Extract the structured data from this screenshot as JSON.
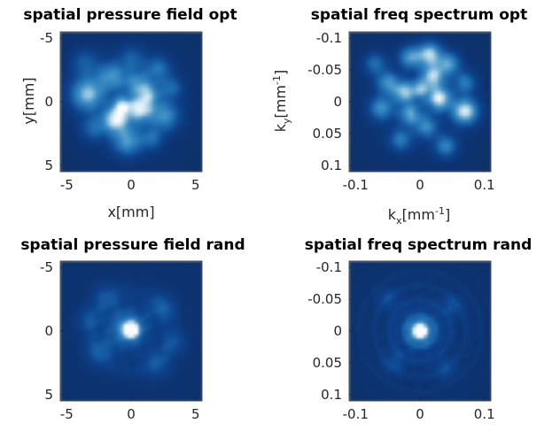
{
  "chart_data": [
    {
      "type": "heatmap",
      "title": "spatial pressure field opt",
      "xlabel": "x[mm]",
      "ylabel": "y[mm]",
      "xlim": [
        -5.5,
        5.5
      ],
      "ylim": [
        -5.5,
        5.5
      ],
      "y_reversed": true,
      "xticks": [
        -5,
        0,
        5
      ],
      "xtick_labels": [
        "-5",
        "0",
        "5"
      ],
      "yticks": [
        -5,
        0,
        5
      ],
      "ytick_labels": [
        "-5",
        "0",
        "5"
      ],
      "colormap": "blues-dark",
      "blobs": [
        {
          "x": -3.4,
          "y": -0.6,
          "r": 0.9,
          "v": 0.75
        },
        {
          "x": -1.5,
          "y": -2.0,
          "r": 0.8,
          "v": 0.55
        },
        {
          "x": 0.5,
          "y": -1.4,
          "r": 0.7,
          "v": 0.5
        },
        {
          "x": 1.4,
          "y": -0.6,
          "r": 0.6,
          "v": 0.5
        },
        {
          "x": 0.7,
          "y": 0.6,
          "r": 0.7,
          "v": 0.8
        },
        {
          "x": -1.2,
          "y": 1.4,
          "r": 0.7,
          "v": 0.85
        },
        {
          "x": -0.7,
          "y": 0.3,
          "r": 0.5,
          "v": 0.6
        },
        {
          "x": 2.6,
          "y": 1.1,
          "r": 0.8,
          "v": 0.55
        },
        {
          "x": -0.3,
          "y": 3.1,
          "r": 0.8,
          "v": 0.6
        },
        {
          "x": 2.1,
          "y": -2.6,
          "r": 0.7,
          "v": 0.4
        },
        {
          "x": -2.9,
          "y": 2.1,
          "r": 0.7,
          "v": 0.35
        },
        {
          "x": 3.1,
          "y": -1.1,
          "r": 0.6,
          "v": 0.35
        },
        {
          "x": 1.6,
          "y": 2.9,
          "r": 0.6,
          "v": 0.35
        },
        {
          "x": -3.6,
          "y": -3.1,
          "r": 0.8,
          "v": 0.3
        },
        {
          "x": 0.1,
          "y": -3.4,
          "r": 0.7,
          "v": 0.3
        }
      ],
      "ring_amp": 0.0
    },
    {
      "type": "heatmap",
      "title": "spatial freq spectrum opt",
      "xlabel": "k",
      "xlabel_sub": "x",
      "xlabel_unit": "[mm",
      "xlabel_sup": "-1",
      "xlabel_close": "]",
      "ylabel": "k",
      "ylabel_sub": "y",
      "ylabel_unit": "[mm",
      "ylabel_sup": "-1",
      "ylabel_close": "]",
      "xlim": [
        -0.11,
        0.11
      ],
      "ylim": [
        -0.11,
        0.11
      ],
      "y_reversed": true,
      "xticks": [
        -0.1,
        0,
        0.1
      ],
      "xtick_labels": [
        "-0.1",
        "0",
        "0.1"
      ],
      "yticks": [
        -0.1,
        -0.05,
        0,
        0.05,
        0.1
      ],
      "ytick_labels": [
        "-0.1",
        "-0.05",
        "0",
        "0.05",
        "0.1"
      ],
      "colormap": "blues-dark",
      "blobs": [
        {
          "x": -0.015,
          "y": -0.07,
          "r": 0.012,
          "v": 0.6
        },
        {
          "x": 0.015,
          "y": -0.075,
          "r": 0.013,
          "v": 0.8
        },
        {
          "x": 0.045,
          "y": -0.06,
          "r": 0.012,
          "v": 0.6
        },
        {
          "x": -0.05,
          "y": -0.03,
          "r": 0.012,
          "v": 0.55
        },
        {
          "x": 0.02,
          "y": -0.04,
          "r": 0.013,
          "v": 0.75
        },
        {
          "x": -0.025,
          "y": -0.015,
          "r": 0.012,
          "v": 0.7
        },
        {
          "x": 0.03,
          "y": -0.005,
          "r": 0.013,
          "v": 0.85
        },
        {
          "x": -0.06,
          "y": 0.01,
          "r": 0.013,
          "v": 0.55
        },
        {
          "x": 0.07,
          "y": 0.015,
          "r": 0.014,
          "v": 0.9
        },
        {
          "x": -0.015,
          "y": 0.02,
          "r": 0.012,
          "v": 0.6
        },
        {
          "x": 0.01,
          "y": 0.04,
          "r": 0.012,
          "v": 0.5
        },
        {
          "x": -0.03,
          "y": 0.06,
          "r": 0.012,
          "v": 0.45
        },
        {
          "x": 0.04,
          "y": 0.07,
          "r": 0.012,
          "v": 0.5
        },
        {
          "x": -0.07,
          "y": -0.06,
          "r": 0.012,
          "v": 0.4
        },
        {
          "x": 0.07,
          "y": -0.03,
          "r": 0.012,
          "v": 0.45
        },
        {
          "x": 0.0,
          "y": -0.02,
          "r": 0.01,
          "v": 0.55
        }
      ],
      "ring_amp": 0.0
    },
    {
      "type": "heatmap",
      "title": "spatial pressure field rand",
      "xlim": [
        -5.5,
        5.5
      ],
      "ylim": [
        -5.5,
        5.5
      ],
      "y_reversed": true,
      "xticks": [
        -5,
        0,
        5
      ],
      "xtick_labels": [
        "-5",
        "0",
        "5"
      ],
      "yticks": [
        -5,
        0,
        5
      ],
      "ytick_labels": [
        "-5",
        "0",
        "5"
      ],
      "colormap": "blues-dark",
      "blobs": [
        {
          "x": 0.0,
          "y": -0.1,
          "r": 0.4,
          "v": 1.0
        },
        {
          "x": -0.3,
          "y": -0.2,
          "r": 1.0,
          "v": 0.45
        },
        {
          "x": -2.4,
          "y": 1.6,
          "r": 0.8,
          "v": 0.25
        },
        {
          "x": 2.4,
          "y": -1.8,
          "r": 0.8,
          "v": 0.25
        },
        {
          "x": -1.9,
          "y": -2.6,
          "r": 0.8,
          "v": 0.22
        },
        {
          "x": 2.0,
          "y": 2.6,
          "r": 0.8,
          "v": 0.22
        },
        {
          "x": -3.3,
          "y": -0.8,
          "r": 0.7,
          "v": 0.2
        },
        {
          "x": 3.3,
          "y": 0.9,
          "r": 0.7,
          "v": 0.2
        }
      ],
      "ring_amp": 0.12,
      "ring_scale": 1.6
    },
    {
      "type": "heatmap",
      "title": "spatial freq spectrum rand",
      "xlim": [
        -0.11,
        0.11
      ],
      "ylim": [
        -0.11,
        0.11
      ],
      "y_reversed": true,
      "xticks": [
        -0.1,
        0,
        0.1
      ],
      "xtick_labels": [
        "-0.1",
        "0",
        "0.1"
      ],
      "yticks": [
        -0.1,
        -0.05,
        0,
        0.05,
        0.1
      ],
      "ytick_labels": [
        "-0.1",
        "-0.05",
        "0",
        "0.05",
        "0.1"
      ],
      "colormap": "blues-dark",
      "blobs": [
        {
          "x": 0.0,
          "y": 0.0,
          "r": 0.008,
          "v": 1.0
        },
        {
          "x": 0.0,
          "y": 0.0,
          "r": 0.02,
          "v": 0.35
        },
        {
          "x": -0.04,
          "y": 0.05,
          "r": 0.012,
          "v": 0.2
        },
        {
          "x": 0.05,
          "y": -0.04,
          "r": 0.012,
          "v": 0.2
        },
        {
          "x": -0.05,
          "y": -0.05,
          "r": 0.012,
          "v": 0.18
        },
        {
          "x": 0.04,
          "y": 0.06,
          "r": 0.012,
          "v": 0.18
        }
      ],
      "ring_amp": 0.16,
      "ring_scale": 0.012
    }
  ]
}
